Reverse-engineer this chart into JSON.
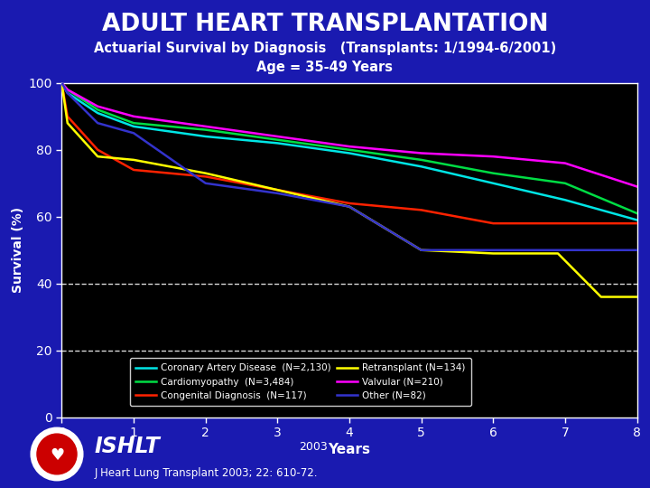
{
  "title": "ADULT HEART TRANSPLANTATION",
  "subtitle": "Actuarial Survival by Diagnosis",
  "subtitle_note": "(Transplants: 1/1994-6/2001)",
  "subtitle2": "Age = 35-49 Years",
  "xlabel": "Years",
  "ylabel": "Survival (%)",
  "bg_outer": "#1a1ab0",
  "bg_plot": "#000000",
  "text_color": "#ffffff",
  "ylim": [
    0,
    100
  ],
  "xlim": [
    0,
    8
  ],
  "yticks": [
    0,
    20,
    40,
    60,
    80,
    100
  ],
  "xticks": [
    0,
    1,
    2,
    3,
    4,
    5,
    6,
    7,
    8
  ],
  "series": [
    {
      "label": "Coronary Artery Disease  (N=2,130)",
      "color": "#00e5e5",
      "x": [
        0,
        0.08,
        0.5,
        1,
        2,
        3,
        4,
        5,
        6,
        7,
        8
      ],
      "y": [
        100,
        97,
        91,
        87,
        84,
        82,
        79,
        75,
        70,
        65,
        59
      ]
    },
    {
      "label": "Cardiomyopathy  (N=3,484)",
      "color": "#00dd44",
      "x": [
        0,
        0.08,
        0.5,
        1,
        2,
        3,
        4,
        5,
        6,
        7,
        8
      ],
      "y": [
        100,
        98,
        92,
        88,
        86,
        83,
        80,
        77,
        73,
        70,
        61
      ]
    },
    {
      "label": "Congenital Diagnosis  (N=117)",
      "color": "#ff2200",
      "x": [
        0,
        0.08,
        0.5,
        1,
        2,
        3,
        4,
        5,
        6,
        7,
        8
      ],
      "y": [
        100,
        90,
        80,
        74,
        72,
        68,
        64,
        62,
        58,
        58,
        58
      ]
    },
    {
      "label": "Retransplant (N=134)",
      "color": "#ffff00",
      "x": [
        0,
        0.08,
        0.5,
        1,
        2,
        3,
        4,
        5,
        6,
        6.9,
        7.5,
        8
      ],
      "y": [
        100,
        88,
        78,
        77,
        73,
        68,
        63,
        50,
        49,
        49,
        36,
        36
      ]
    },
    {
      "label": "Valvular (N=210)",
      "color": "#ff00ff",
      "x": [
        0,
        0.08,
        0.5,
        1,
        2,
        3,
        4,
        5,
        6,
        7,
        8
      ],
      "y": [
        100,
        98,
        93,
        90,
        87,
        84,
        81,
        79,
        78,
        76,
        69
      ]
    },
    {
      "label": "Other (N=82)",
      "color": "#3333cc",
      "x": [
        0,
        0.08,
        0.5,
        1,
        2,
        3,
        4,
        5,
        6,
        7,
        8
      ],
      "y": [
        100,
        97,
        88,
        85,
        70,
        67,
        63,
        50,
        50,
        50,
        50
      ]
    }
  ],
  "legend_col1_indices": [
    0,
    2,
    4
  ],
  "legend_col2_indices": [
    1,
    3,
    5
  ],
  "footer_text": "J Heart Lung Transplant 2003; 22: 610-72.",
  "year_text": "2003",
  "ishlt_text": "ISHLT"
}
